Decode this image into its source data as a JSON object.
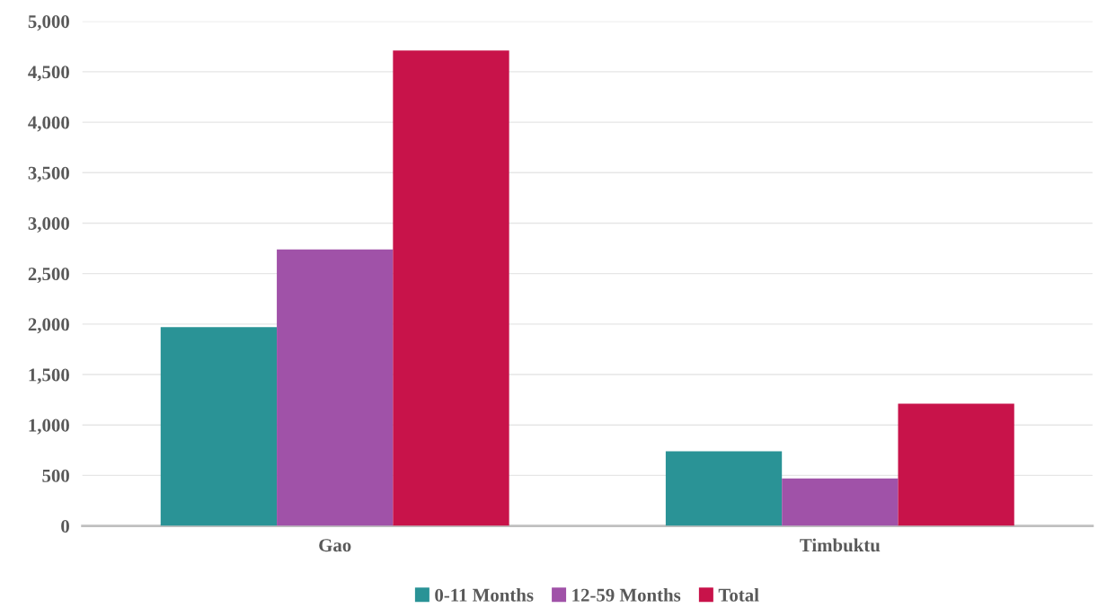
{
  "chart_data": {
    "type": "bar",
    "categories": [
      "Gao",
      "Timbuktu"
    ],
    "series": [
      {
        "name": "0-11 Months",
        "color": "#2a9396",
        "values": [
          1970,
          740
        ]
      },
      {
        "name": "12-59 Months",
        "color": "#a052a8",
        "values": [
          2740,
          470
        ]
      },
      {
        "name": "Total",
        "color": "#c8134a",
        "values": [
          4710,
          1210
        ]
      }
    ],
    "ylim": [
      0,
      5000
    ],
    "yticks": [
      {
        "value": 0,
        "label": "0"
      },
      {
        "value": 500,
        "label": "500"
      },
      {
        "value": 1000,
        "label": "1,000"
      },
      {
        "value": 1500,
        "label": "1,500"
      },
      {
        "value": 2000,
        "label": "2,000"
      },
      {
        "value": 2500,
        "label": "2,500"
      },
      {
        "value": 3000,
        "label": "3,000"
      },
      {
        "value": 3500,
        "label": "3,500"
      },
      {
        "value": 4000,
        "label": "4,000"
      },
      {
        "value": 4500,
        "label": "4,500"
      },
      {
        "value": 5000,
        "label": "5,000"
      }
    ],
    "grid": "y",
    "legend": "bottom"
  }
}
